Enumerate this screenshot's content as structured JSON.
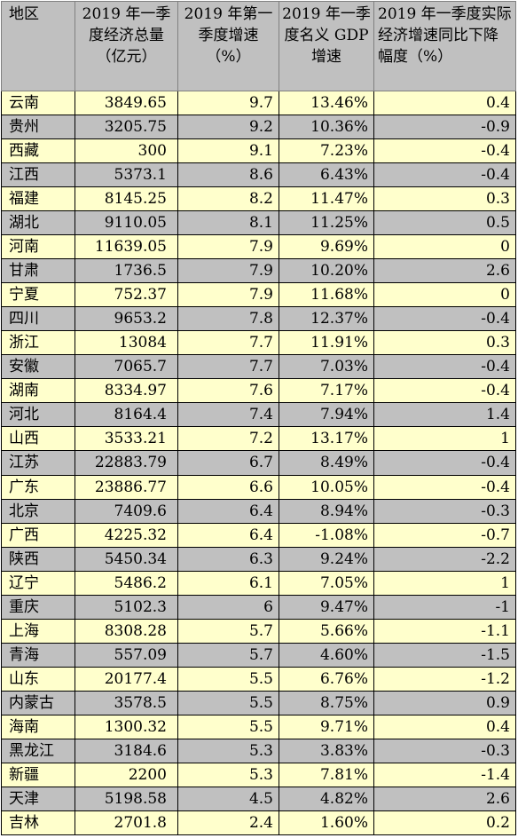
{
  "headers": [
    "地区",
    "2019 年一季度经济总量（亿元）",
    "2019 年第一季度增速（%）",
    "2019 年一季度名义 GDP 增速",
    "2019 年一季度实际经济增速同比下降幅度（%）"
  ],
  "rows": [
    [
      "云南",
      "3849.65",
      "9.7",
      "13.46%",
      "0.4"
    ],
    [
      "贵州",
      "3205.75",
      "9.2",
      "10.36%",
      "-0.9"
    ],
    [
      "西藏",
      "300",
      "9.1",
      "7.23%",
      "-0.4"
    ],
    [
      "江西",
      "5373.1",
      "8.6",
      "6.43%",
      "-0.4"
    ],
    [
      "福建",
      "8145.25",
      "8.2",
      "11.47%",
      "0.3"
    ],
    [
      "湖北",
      "9110.05",
      "8.1",
      "11.25%",
      "0.5"
    ],
    [
      "河南",
      "11639.05",
      "7.9",
      "9.69%",
      "0"
    ],
    [
      "甘肃",
      "1736.5",
      "7.9",
      "10.20%",
      "2.6"
    ],
    [
      "宁夏",
      "752.37",
      "7.9",
      "11.68%",
      "0"
    ],
    [
      "四川",
      "9653.2",
      "7.8",
      "12.37%",
      "-0.4"
    ],
    [
      "浙江",
      "13084",
      "7.7",
      "11.91%",
      "0.3"
    ],
    [
      "安徽",
      "7065.7",
      "7.7",
      "7.03%",
      "-0.4"
    ],
    [
      "湖南",
      "8334.97",
      "7.6",
      "7.17%",
      "-0.4"
    ],
    [
      "河北",
      "8164.4",
      "7.4",
      "7.94%",
      "1.4"
    ],
    [
      "山西",
      "3533.21",
      "7.2",
      "13.17%",
      "1"
    ],
    [
      "江苏",
      "22883.79",
      "6.7",
      "8.49%",
      "-0.4"
    ],
    [
      "广东",
      "23886.77",
      "6.6",
      "10.05%",
      "-0.4"
    ],
    [
      "北京",
      "7409.6",
      "6.4",
      "8.94%",
      "-0.3"
    ],
    [
      "广西",
      "4225.32",
      "6.4",
      "-1.08%",
      "-0.7"
    ],
    [
      "陕西",
      "5450.34",
      "6.3",
      "9.24%",
      "-2.2"
    ],
    [
      "辽宁",
      "5486.2",
      "6.1",
      "7.05%",
      "1"
    ],
    [
      "重庆",
      "5102.3",
      "6",
      "9.47%",
      "-1"
    ],
    [
      "上海",
      "8308.28",
      "5.7",
      "5.66%",
      "-1.1"
    ],
    [
      "青海",
      "557.09",
      "5.7",
      "4.60%",
      "-1.5"
    ],
    [
      "山东",
      "20177.4",
      "5.5",
      "6.76%",
      "-1.2"
    ],
    [
      "内蒙古",
      "3578.5",
      "5.5",
      "8.75%",
      "0.9"
    ],
    [
      "海南",
      "1300.32",
      "5.5",
      "9.71%",
      "0.4"
    ],
    [
      "黑龙江",
      "3184.6",
      "5.3",
      "3.83%",
      "-0.3"
    ],
    [
      "新疆",
      "2200",
      "5.3",
      "7.81%",
      "-1.4"
    ],
    [
      "天津",
      "5198.58",
      "4.5",
      "4.82%",
      "2.6"
    ],
    [
      "吉林",
      "2701.8",
      "2.4",
      "1.60%",
      "0.2"
    ]
  ],
  "colors": {
    "header_bg": "#c0c0c0",
    "row_odd_bg": "#ffffcc",
    "row_even_bg": "#c0c0c0"
  }
}
